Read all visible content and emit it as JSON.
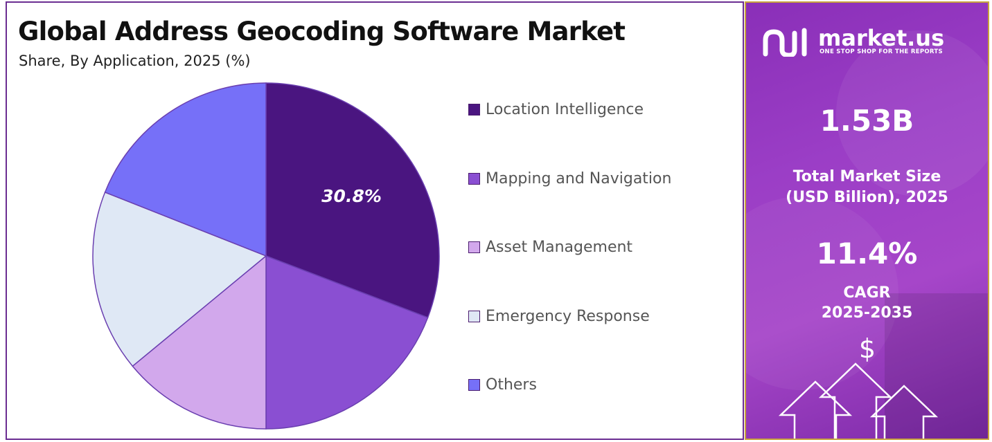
{
  "title": "Global Address Geocoding Software Market",
  "subtitle": "Share, By Application, 2025 (%)",
  "chart_data": {
    "type": "pie",
    "title": "Global Address Geocoding Software Market",
    "subtitle": "Share, By Application, 2025 (%)",
    "categories": [
      "Location Intelligence",
      "Mapping and Navigation",
      "Asset Management",
      "Emergency Response",
      "Others"
    ],
    "values": [
      30.8,
      19.2,
      14.0,
      17.0,
      19.0
    ],
    "data_labels": [
      "30.8%",
      "",
      "",
      "",
      ""
    ],
    "colors": [
      "#4a1580",
      "#8a4fd2",
      "#d2a8ec",
      "#dfe8f5",
      "#7670f8"
    ],
    "legend_position": "right"
  },
  "legend": [
    {
      "label": "Location Intelligence",
      "color": "#4a1580"
    },
    {
      "label": "Mapping and Navigation",
      "color": "#8a4fd2"
    },
    {
      "label": "Asset Management",
      "color": "#d2a8ec"
    },
    {
      "label": "Emergency Response",
      "color": "#dfe8f5"
    },
    {
      "label": "Others",
      "color": "#7670f8"
    }
  ],
  "side_panel": {
    "brand_name": "market.us",
    "brand_tagline": "ONE STOP SHOP FOR THE REPORTS",
    "market_size_value": "1.53B",
    "market_size_label_line1": "Total Market Size",
    "market_size_label_line2": "(USD Billion), 2025",
    "cagr_value": "11.4%",
    "cagr_label_line1": "CAGR",
    "cagr_label_line2": "2025-2035",
    "currency_symbol": "$",
    "background_color": "#9b3ec6",
    "border_color": "#c8a33c"
  }
}
